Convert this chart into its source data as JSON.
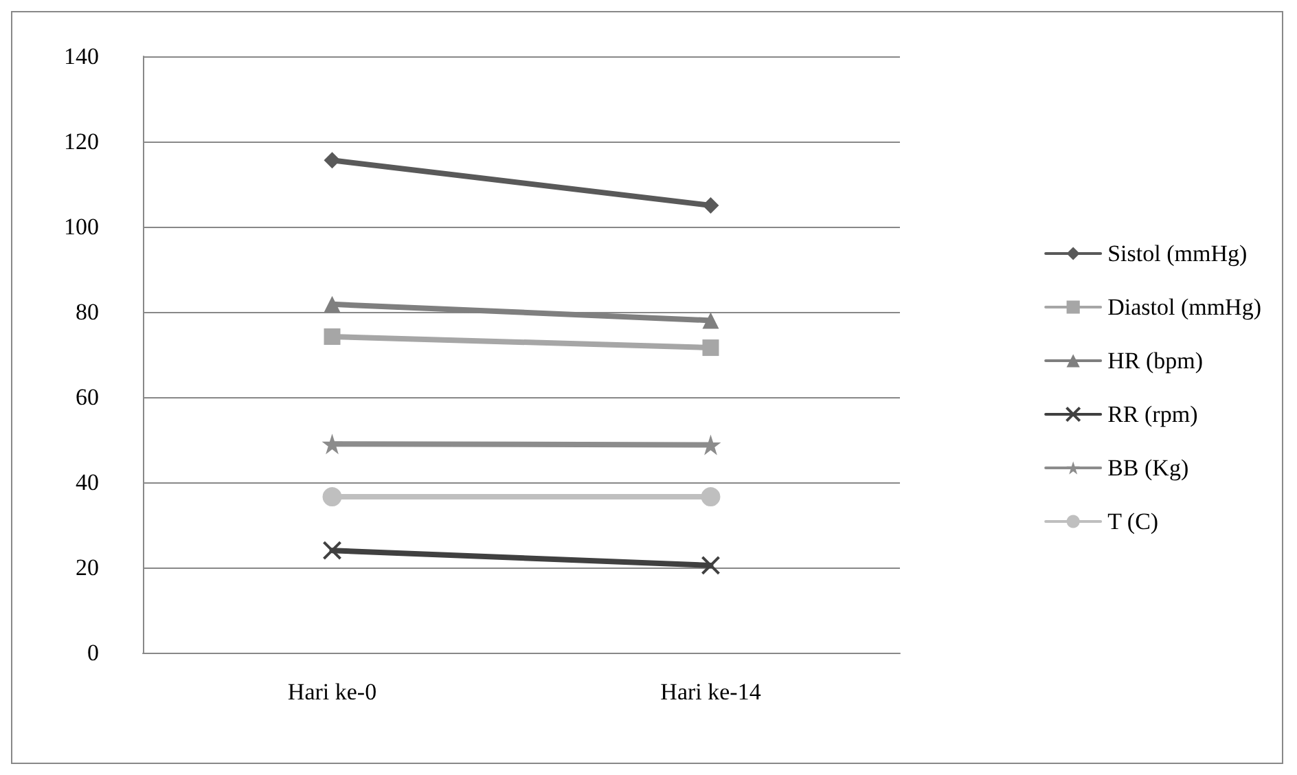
{
  "chart_data": {
    "type": "line",
    "categories": [
      "Hari ke-0",
      "Hari ke-14"
    ],
    "series": [
      {
        "name": "Sistol (mmHg)",
        "color": "#595959",
        "marker": "diamond",
        "values": [
          115.6,
          105
        ]
      },
      {
        "name": "Diastol (mmHg)",
        "color": "#a6a6a6",
        "marker": "square",
        "values": [
          74.2,
          71.6
        ]
      },
      {
        "name": "HR (bpm)",
        "color": "#7f7f7f",
        "marker": "triangle",
        "values": [
          81.8,
          78
        ]
      },
      {
        "name": "RR (rpm)",
        "color": "#404040",
        "marker": "cross",
        "values": [
          24,
          20.5
        ]
      },
      {
        "name": "BB (Kg)",
        "color": "#8c8c8c",
        "marker": "star",
        "values": [
          49,
          48.8
        ]
      },
      {
        "name": "T (C)",
        "color": "#bfbfbf",
        "marker": "circle",
        "values": [
          36.6,
          36.6
        ]
      }
    ],
    "ylim": [
      0,
      140
    ],
    "yticks": [
      0,
      20,
      40,
      60,
      80,
      100,
      120,
      140
    ],
    "grid": "y",
    "legend": "right",
    "line_style": "solid"
  }
}
